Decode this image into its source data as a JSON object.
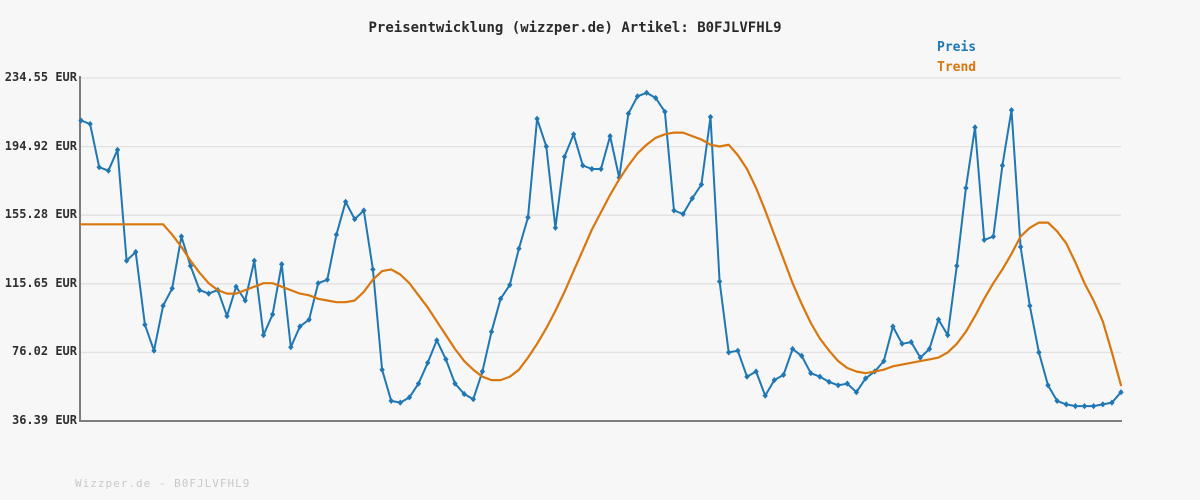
{
  "title": "Preisentwicklung (wizzper.de) Artikel: B0FJLVFHL9",
  "footer": "Wizzper.de - B0FJLVFHL9",
  "colors": {
    "background": "#f7f7f7",
    "grid": "#e1e1e1",
    "axis": "#7d7d7d",
    "title_text": "#2a2a2a",
    "tick_label_text": "#2f2f2f",
    "footer_text": "#c8c8c8"
  },
  "y_axis": {
    "unit": "EUR",
    "tick_labels": [
      "234.55 EUR",
      "194.92 EUR",
      "155.28 EUR",
      "115.65 EUR",
      "76.02 EUR",
      "36.39 EUR"
    ],
    "tick_values": [
      234.55,
      194.92,
      155.28,
      115.65,
      76.02,
      36.39
    ]
  },
  "chart_data": {
    "type": "line",
    "title": "Preisentwicklung (wizzper.de) Artikel: B0FJLVFHL9",
    "xlabel": "",
    "ylabel": "EUR",
    "ylim": [
      36.39,
      234.55
    ],
    "grid": "horizontal gridlines only, no x tick labels",
    "legend_position": "top-right",
    "series": [
      {
        "name": "Preis",
        "color": "#1f77b4",
        "style": "line+diamond-markers",
        "values": [
          210,
          208,
          183,
          181,
          193,
          129,
          134,
          92,
          77,
          103,
          113,
          143,
          126,
          112,
          110,
          112,
          97,
          114,
          106,
          129,
          86,
          98,
          127,
          79,
          91,
          95,
          116,
          118,
          144,
          163,
          153,
          158,
          124,
          66,
          48,
          47,
          50,
          58,
          70,
          83,
          72,
          58,
          52,
          49,
          65,
          88,
          107,
          115,
          136,
          154,
          211,
          195,
          148,
          189,
          202,
          184,
          182,
          182,
          201,
          177,
          214,
          224,
          226,
          223,
          215,
          158,
          156,
          165,
          173,
          212,
          117,
          76,
          77,
          62,
          65,
          51,
          60,
          63,
          78,
          74,
          64,
          62,
          59,
          57,
          58,
          53,
          61,
          65,
          71,
          91,
          81,
          82,
          73,
          78,
          95,
          86,
          126,
          171,
          206,
          141,
          143,
          184,
          216,
          137,
          103,
          76,
          57,
          48,
          46,
          45,
          45,
          45,
          46,
          47,
          53
        ]
      },
      {
        "name": "Trend",
        "color": "#d9770f",
        "style": "line",
        "values": [
          150,
          150,
          150,
          150,
          150,
          150,
          150,
          150,
          150,
          150,
          144,
          137,
          129,
          122,
          116,
          112,
          110,
          110,
          112,
          114,
          116,
          116,
          114,
          112,
          110,
          109,
          107,
          106,
          105,
          105,
          106,
          111,
          118,
          123,
          124,
          121,
          116,
          109,
          102,
          94,
          86,
          78,
          71,
          66,
          62,
          60,
          60,
          62,
          66,
          73,
          81,
          90,
          100,
          111,
          123,
          135,
          147,
          157,
          167,
          176,
          184,
          191,
          196,
          200,
          202,
          203,
          203,
          201,
          199,
          196,
          195,
          196,
          190,
          182,
          171,
          158,
          144,
          130,
          116,
          104,
          93,
          84,
          77,
          71,
          67,
          65,
          64,
          65,
          66,
          68,
          69,
          70,
          71,
          72,
          73,
          76,
          81,
          88,
          97,
          107,
          116,
          124,
          133,
          143,
          148,
          151,
          151,
          146,
          139,
          128,
          116,
          106,
          94,
          76,
          57
        ]
      }
    ]
  }
}
